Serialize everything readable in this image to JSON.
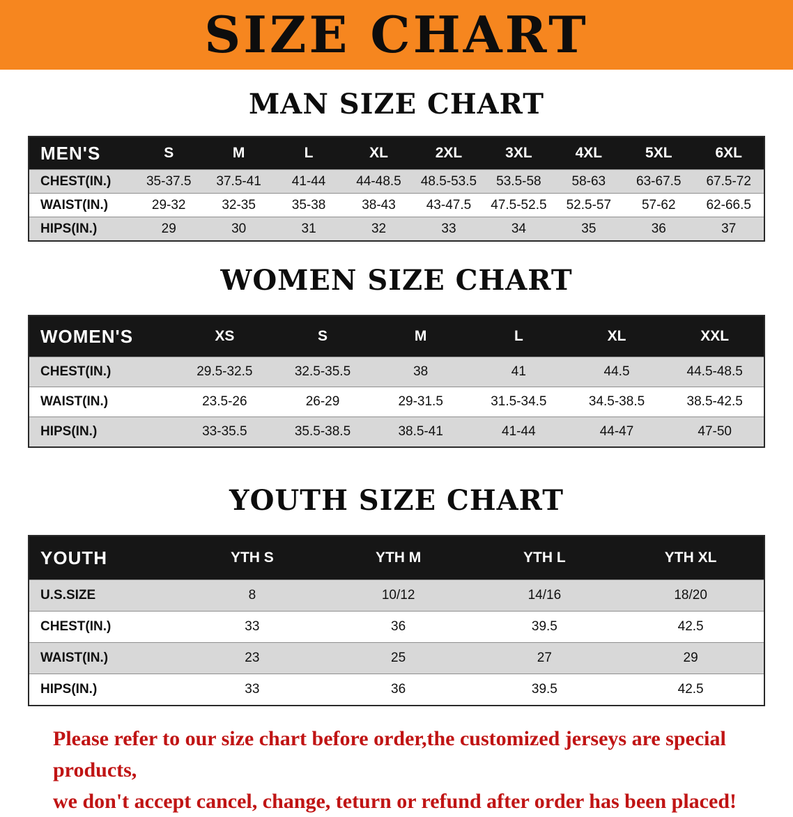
{
  "banner": {
    "title": "SIZE CHART"
  },
  "sections": [
    {
      "heading": "MAN SIZE CHART",
      "table": {
        "header": [
          "MEN'S",
          "S",
          "M",
          "L",
          "XL",
          "2XL",
          "3XL",
          "4XL",
          "5XL",
          "6XL"
        ],
        "rows": [
          [
            "CHEST(IN.)",
            "35-37.5",
            "37.5-41",
            "41-44",
            "44-48.5",
            "48.5-53.5",
            "53.5-58",
            "58-63",
            "63-67.5",
            "67.5-72"
          ],
          [
            "WAIST(IN.)",
            "29-32",
            "32-35",
            "35-38",
            "38-43",
            "43-47.5",
            "47.5-52.5",
            "52.5-57",
            "57-62",
            "62-66.5"
          ],
          [
            "HIPS(IN.)",
            "29",
            "30",
            "31",
            "32",
            "33",
            "34",
            "35",
            "36",
            "37"
          ]
        ]
      }
    },
    {
      "heading": "WOMEN SIZE CHART",
      "table": {
        "header": [
          "WOMEN'S",
          "XS",
          "S",
          "M",
          "L",
          "XL",
          "XXL"
        ],
        "rows": [
          [
            "CHEST(IN.)",
            "29.5-32.5",
            "32.5-35.5",
            "38",
            "41",
            "44.5",
            "44.5-48.5"
          ],
          [
            "WAIST(IN.)",
            "23.5-26",
            "26-29",
            "29-31.5",
            "31.5-34.5",
            "34.5-38.5",
            "38.5-42.5"
          ],
          [
            "HIPS(IN.)",
            "33-35.5",
            "35.5-38.5",
            "38.5-41",
            "41-44",
            "44-47",
            "47-50"
          ]
        ]
      }
    },
    {
      "heading": "YOUTH SIZE CHART",
      "table": {
        "header": [
          "YOUTH",
          "YTH S",
          "YTH M",
          "YTH L",
          "YTH XL"
        ],
        "rows": [
          [
            "U.S.SIZE",
            "8",
            "10/12",
            "14/16",
            "18/20"
          ],
          [
            "CHEST(IN.)",
            "33",
            "36",
            "39.5",
            "42.5"
          ],
          [
            "WAIST(IN.)",
            "23",
            "25",
            "27",
            "29"
          ],
          [
            "HIPS(IN.)",
            "33",
            "36",
            "39.5",
            "42.5"
          ]
        ]
      }
    }
  ],
  "disclaimer": {
    "line1": "Please refer to our size chart before order,the customized jerseys are special products,",
    "line2": "we don't accept cancel, change, teturn or refund after order has been placed!"
  },
  "colors": {
    "banner_bg": "#f6861f",
    "header_bg": "#161616",
    "shade_bg": "#d8d8d8",
    "disclaimer_color": "#c01414"
  }
}
